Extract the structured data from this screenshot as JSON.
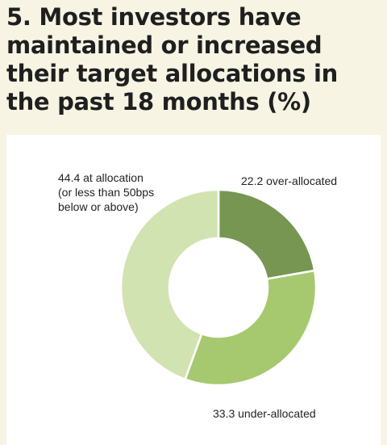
{
  "title": "5. Most investors have maintained or increased their target allocations in the past 18 months (%)",
  "colors": {
    "background": "#f7f4e3",
    "panel": "#ffffff",
    "over": "#769651",
    "under": "#a6c96f",
    "at": "#d2e3b2"
  },
  "chart_data": {
    "type": "pie",
    "donut": true,
    "title": "5. Most investors have maintained or increased their target allocations in the past 18 months (%)",
    "slices": [
      {
        "value": 22.2,
        "label_lines": [
          "22.2 over-allocated"
        ],
        "color": "#769651"
      },
      {
        "value": 33.3,
        "label_lines": [
          "33.3 under-allocated"
        ],
        "color": "#a6c96f"
      },
      {
        "value": 44.4,
        "label_lines": [
          "44.4 at allocation",
          "(or less than 50bps",
          "below or above)"
        ],
        "color": "#d2e3b2"
      }
    ]
  }
}
